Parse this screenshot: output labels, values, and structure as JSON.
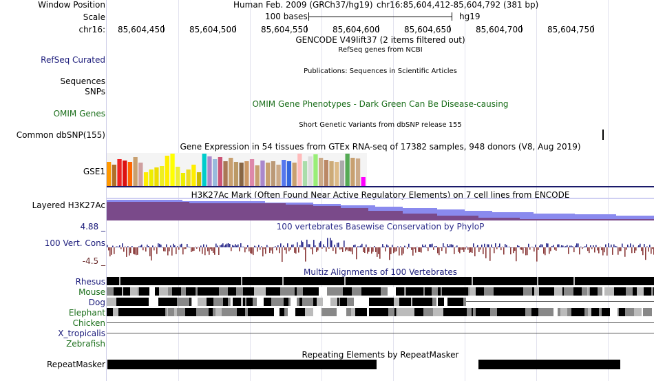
{
  "header": {
    "window_position_label": "Window Position",
    "scale_label": "Scale",
    "chrom_label": "chr16:",
    "assembly_text": "Human Feb. 2009 (GRCh37/hg19)",
    "position_text": "chr16:85,604,412-85,604,792 (381 bp)",
    "scale_text": "100 bases",
    "scale_db": "hg19",
    "ticks": [
      "85,604,450",
      "85,604,500",
      "85,604,550",
      "85,604,600",
      "85,604,650",
      "85,604,700",
      "85,604,750"
    ]
  },
  "tracks": {
    "gencode_title": "GENCODE V49lift37 (2 items filtered out)",
    "refseq_label": "RefSeq Curated",
    "refseq_title": "RefSeq genes from NCBI",
    "publications_title": "Publications: Sequences in Scientific Articles",
    "sequences_label": "Sequences",
    "snps_label": "SNPs",
    "omim_label": "OMIM Genes",
    "omim_title": "OMIM Gene Phenotypes - Dark Green Can Be Disease-causing",
    "dbsnp_title": "Short Genetic Variants from dbSNP release 155",
    "dbsnp_label": "Common dbSNP(155)",
    "gtex_title": "Gene Expression in 54 tissues from GTEx RNA-seq of 17382 samples, 948 donors (V8, Aug 2019)",
    "gtex_label": "GSE1",
    "h3k27ac_title": "H3K27Ac Mark (Often Found Near Active Regulatory Elements) on 7 cell lines from ENCODE",
    "h3k27ac_label": "Layered H3K27Ac",
    "cons_max": "4.88 _",
    "cons_min": "-4.5 _",
    "cons_label": "100 Vert. Cons",
    "cons_title": "100 vertebrates Basewise Conservation by PhyloP",
    "multiz_title": "Multiz Alignments of 100 Vertebrates",
    "multiz_species": [
      "Rhesus",
      "Mouse",
      "Dog",
      "Elephant",
      "Chicken",
      "X_tropicalis",
      "Zebrafish"
    ],
    "repeat_title": "Repeating Elements by RepeatMasker",
    "repeat_label": "RepeatMasker"
  },
  "colors": {
    "navy": "#1a1a7a",
    "green": "#1a6e1a",
    "cons_pos": "#2a2a8a",
    "cons_neg": "#8a3a3a",
    "h3k_purple": "#7a4a8a",
    "h3k_blue": "#8a8aee"
  },
  "gtex_colors": [
    "#ff9900",
    "#b0702a",
    "#ee2222",
    "#dd1111",
    "#ff6600",
    "#c8a070",
    "#cfa0a0",
    "#ffee00",
    "#eeee00",
    "#eedd00",
    "#eeee22",
    "#ffee00",
    "#ffff00",
    "#eeee33",
    "#eeee00",
    "#eedd22",
    "#ffee00",
    "#ccbb00",
    "#00cccc",
    "#aa88cc",
    "#99bbdd",
    "#cc5577",
    "#aa7755",
    "#c8a070",
    "#bb9966",
    "#886644",
    "#cc9966",
    "#dd88aa",
    "#c8a070",
    "#aa88cc",
    "#c8a070",
    "#bb9977",
    "#ccaa88",
    "#5577ee",
    "#3366dd",
    "#c8a070",
    "#ffbbbb",
    "#aaddaa",
    "#dddddd",
    "#99ee77",
    "#ccaa88",
    "#bb8866",
    "#ccaa77",
    "#ddbb88",
    "#aaaaaa",
    "#55aa55",
    "#c8a070",
    "#ccaa88",
    "#ff00ff"
  ],
  "gtex_values": [
    0.72,
    0.65,
    0.82,
    0.78,
    0.73,
    0.88,
    0.7,
    0.42,
    0.5,
    0.56,
    0.6,
    0.92,
    0.98,
    0.58,
    0.4,
    0.5,
    0.64,
    0.42,
    0.97,
    0.9,
    0.82,
    0.88,
    0.76,
    0.86,
    0.72,
    0.7,
    0.74,
    0.82,
    0.62,
    0.78,
    0.7,
    0.76,
    0.64,
    0.8,
    0.76,
    0.7,
    0.98,
    0.76,
    0.9,
    0.96,
    0.86,
    0.8,
    0.76,
    0.72,
    0.78,
    0.98,
    0.86,
    0.84,
    0.28
  ]
}
